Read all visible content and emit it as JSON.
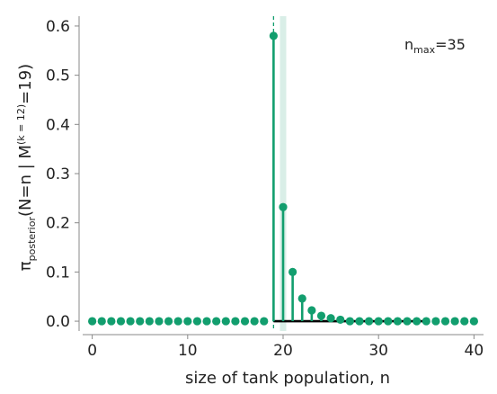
{
  "chart_data": {
    "type": "stem",
    "x": [
      0,
      1,
      2,
      3,
      4,
      5,
      6,
      7,
      8,
      9,
      10,
      11,
      12,
      13,
      14,
      15,
      16,
      17,
      18,
      19,
      20,
      21,
      22,
      23,
      24,
      25,
      26,
      27,
      28,
      29,
      30,
      31,
      32,
      33,
      34,
      35,
      36,
      37,
      38,
      39,
      40
    ],
    "values": [
      0,
      0,
      0,
      0,
      0,
      0,
      0,
      0,
      0,
      0,
      0,
      0,
      0,
      0,
      0,
      0,
      0,
      0,
      0,
      0.58,
      0.232,
      0.1,
      0.046,
      0.022,
      0.011,
      0.006,
      0.003,
      0,
      0,
      0,
      0,
      0,
      0,
      0,
      0,
      0,
      0,
      0,
      0,
      0,
      0
    ],
    "xlim": [
      -1,
      41
    ],
    "ylim": [
      -0.02,
      0.62
    ],
    "xticks": [
      "0",
      "10",
      "20",
      "30",
      "40"
    ],
    "yticks": [
      "0.0",
      "0.1",
      "0.2",
      "0.3",
      "0.4",
      "0.5",
      "0.6"
    ],
    "xlabel": "size of tank population, n",
    "ylabel": {
      "pi": "π",
      "pi_sub": "posterior",
      "mid": "(N=n | M",
      "sup": "(k = 12)",
      "end": "=19)"
    },
    "annotation": {
      "main": "n",
      "sub": "max",
      "rest": "=35"
    },
    "observed_max": 19,
    "n_max": 35,
    "colors": {
      "stem": "#129e6e",
      "band": "#d9eee7",
      "axis": "#888888",
      "baseline": "#000000"
    }
  }
}
